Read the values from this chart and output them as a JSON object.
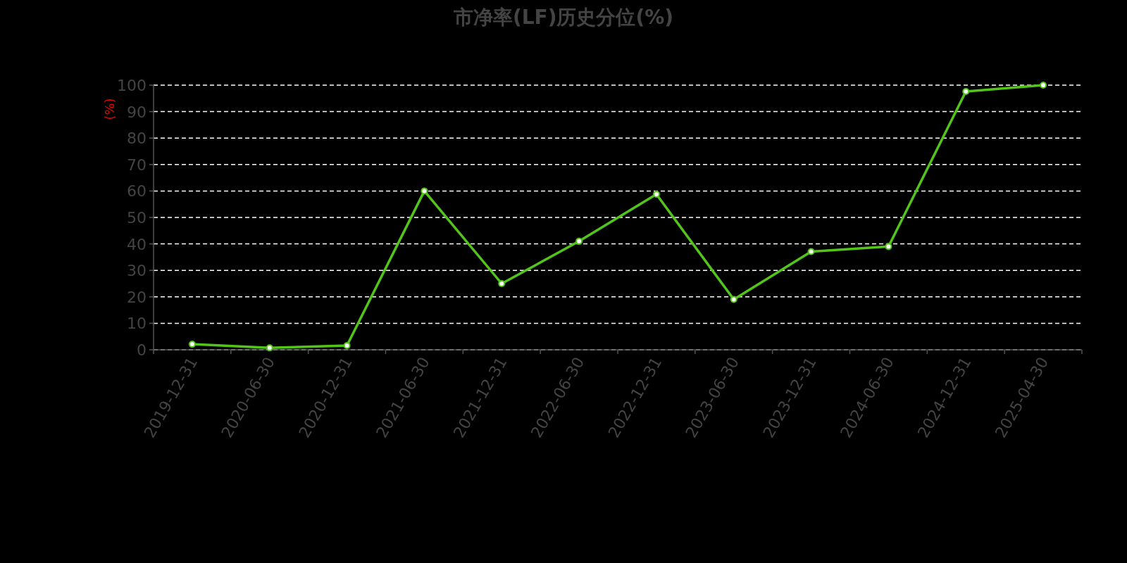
{
  "chart_data": {
    "type": "line",
    "title": "市净率(LF)历史分位(%)",
    "ylabel": "(%)",
    "categories": [
      "2019-12-31",
      "2020-06-30",
      "2020-12-31",
      "2021-06-30",
      "2021-12-31",
      "2022-06-30",
      "2022-12-31",
      "2023-06-30",
      "2023-12-31",
      "2024-06-30",
      "2024-12-31",
      "2025-04-30"
    ],
    "series": [
      {
        "color": "#52c41a",
        "values": [
          2.1,
          0.7,
          1.6,
          60,
          25,
          41,
          58.8,
          19,
          37.1,
          39,
          97.6,
          100
        ]
      }
    ],
    "ylim": [
      0,
      100
    ],
    "yticks": [
      0,
      10,
      20,
      30,
      40,
      50,
      60,
      70,
      80,
      90,
      100
    ],
    "grid": "y",
    "marker": "circle"
  }
}
